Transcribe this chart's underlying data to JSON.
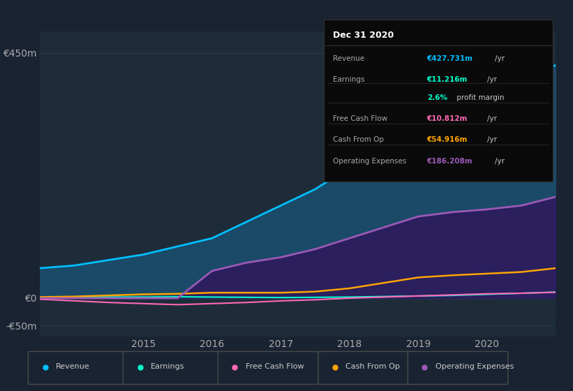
{
  "background_color": "#1a2332",
  "plot_bg_color": "#1e2c3a",
  "grid_color": "#2a3a4a",
  "years": [
    2013.5,
    2014,
    2014.5,
    2015,
    2015.5,
    2016,
    2016.5,
    2017,
    2017.5,
    2018,
    2018.5,
    2019,
    2019.5,
    2020,
    2020.5,
    2021.0
  ],
  "revenue": [
    55,
    60,
    70,
    80,
    95,
    110,
    140,
    170,
    200,
    240,
    290,
    330,
    350,
    370,
    400,
    428
  ],
  "earnings": [
    1,
    1.5,
    2,
    2,
    2.5,
    2,
    1.5,
    1,
    1.5,
    2,
    3,
    4,
    5,
    7,
    9,
    11.2
  ],
  "free_cash_flow": [
    -2,
    -5,
    -8,
    -10,
    -12,
    -10,
    -8,
    -5,
    -3,
    0,
    2,
    4,
    6,
    8,
    9,
    10.8
  ],
  "cash_from_op": [
    2,
    3,
    5,
    7,
    8,
    10,
    10,
    10,
    12,
    18,
    28,
    38,
    42,
    45,
    48,
    55
  ],
  "operating_expenses": [
    0,
    0,
    0,
    0,
    0,
    50,
    65,
    75,
    90,
    110,
    130,
    150,
    158,
    163,
    170,
    186
  ],
  "revenue_color": "#00bfff",
  "earnings_color": "#00ffcc",
  "free_cash_flow_color": "#ff69b4",
  "cash_from_op_color": "#ffa500",
  "operating_expenses_color": "#9b59b6",
  "revenue_fill": "#1a5070",
  "operating_expenses_fill": "#2d1b5e",
  "ylim": [
    -70,
    490
  ],
  "yticks": [
    -50,
    0,
    450
  ],
  "ytick_labels": [
    "-€50m",
    "€0",
    "€450m"
  ],
  "xticks": [
    2015,
    2016,
    2017,
    2018,
    2019,
    2020
  ],
  "info_box": {
    "title": "Dec 31 2020",
    "bg_color": "#0a0a0a",
    "border_color": "#333333",
    "title_color": "#ffffff",
    "label_color": "#aaaaaa"
  },
  "legend": [
    {
      "label": "Revenue",
      "color": "#00bfff"
    },
    {
      "label": "Earnings",
      "color": "#00ffcc"
    },
    {
      "label": "Free Cash Flow",
      "color": "#ff69b4"
    },
    {
      "label": "Cash From Op",
      "color": "#ffa500"
    },
    {
      "label": "Operating Expenses",
      "color": "#9b59b6"
    }
  ]
}
